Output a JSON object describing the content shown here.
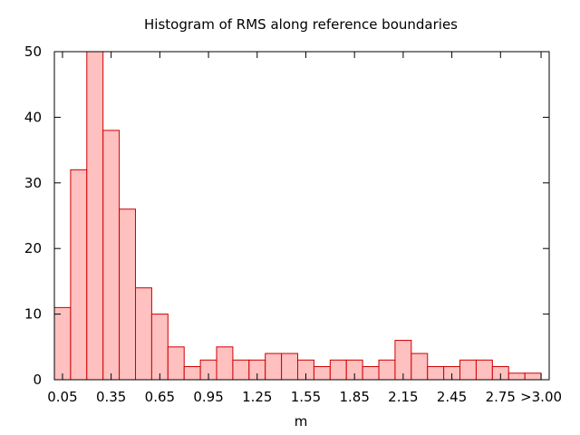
{
  "chart_data": {
    "type": "bar",
    "title": "Histogram of RMS along reference boundaries",
    "xlabel": "m",
    "ylabel": "",
    "ylim": [
      0,
      50
    ],
    "yticks": [
      0,
      10,
      20,
      30,
      40,
      50
    ],
    "xlim": [
      0.0,
      3.05
    ],
    "bin_width": 0.1,
    "xtick_values": [
      0.05,
      0.35,
      0.65,
      0.95,
      1.25,
      1.55,
      1.85,
      2.15,
      2.45,
      2.75,
      3.0
    ],
    "xtick_labels": [
      "0.05",
      "0.35",
      "0.65",
      "0.95",
      "1.25",
      "1.55",
      "1.85",
      "2.15",
      "2.45",
      "2.75",
      ">3.00"
    ],
    "bin_centers": [
      0.05,
      0.15,
      0.25,
      0.35,
      0.45,
      0.55,
      0.65,
      0.75,
      0.85,
      0.95,
      1.05,
      1.15,
      1.25,
      1.35,
      1.45,
      1.55,
      1.65,
      1.75,
      1.85,
      1.95,
      2.05,
      2.15,
      2.25,
      2.35,
      2.45,
      2.55,
      2.65,
      2.75,
      2.85,
      2.95
    ],
    "values": [
      11,
      32,
      50,
      38,
      26,
      14,
      10,
      5,
      2,
      3,
      5,
      3,
      3,
      4,
      4,
      3,
      2,
      3,
      3,
      2,
      3,
      6,
      4,
      2,
      2,
      3,
      3,
      2,
      1,
      1
    ],
    "bar_fill": "#ffc0c0",
    "bar_stroke": "#cc0000",
    "grid": false,
    "legend": "none"
  }
}
